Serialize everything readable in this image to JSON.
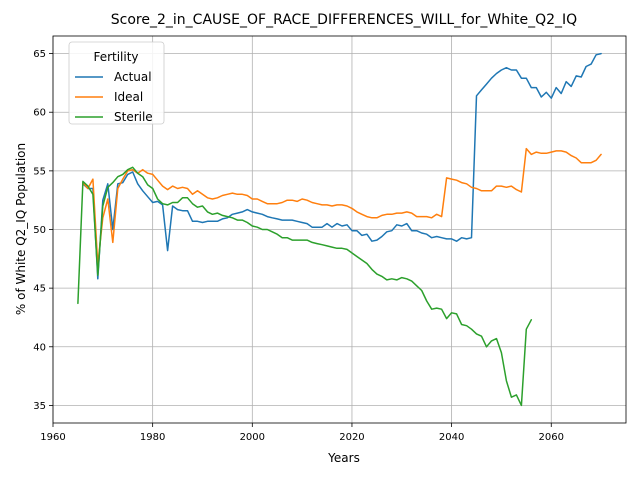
{
  "chart_data": {
    "type": "line",
    "title": "Score_2_in_CAUSE_OF_RACE_DIFFERENCES_WILL_for_White_Q2_IQ",
    "xlabel": "Years",
    "ylabel": "% of White Q2_IQ Population",
    "xlim": [
      1960,
      2075
    ],
    "ylim": [
      33.5,
      66.5
    ],
    "xticks": [
      1960,
      1980,
      2000,
      2020,
      2040,
      2060
    ],
    "yticks": [
      35,
      40,
      45,
      50,
      55,
      60,
      65
    ],
    "grid": true,
    "legend": {
      "title": "Fertility",
      "placement": "upper-left"
    },
    "series": [
      {
        "name": "Actual",
        "color": "#1f77b4",
        "x": [
          1966,
          1967,
          1968,
          1969,
          1970,
          1971,
          1972,
          1973,
          1974,
          1975,
          1976,
          1977,
          1978,
          1979,
          1980,
          1981,
          1982,
          1983,
          1984,
          1985,
          1986,
          1987,
          1988,
          1989,
          1990,
          1991,
          1992,
          1993,
          1994,
          1995,
          1996,
          1997,
          1998,
          1999,
          2000,
          2001,
          2002,
          2003,
          2004,
          2005,
          2006,
          2007,
          2008,
          2009,
          2010,
          2011,
          2012,
          2013,
          2014,
          2015,
          2016,
          2017,
          2018,
          2019,
          2020,
          2021,
          2022,
          2023,
          2024,
          2025,
          2026,
          2027,
          2028,
          2029,
          2030,
          2031,
          2032,
          2033,
          2034,
          2035,
          2036,
          2037,
          2038,
          2039,
          2040,
          2041,
          2042,
          2043,
          2044,
          2045,
          2046,
          2047,
          2048,
          2049,
          2050,
          2051,
          2052,
          2053,
          2054,
          2055,
          2056,
          2057,
          2058,
          2059,
          2060,
          2061,
          2062,
          2063,
          2064,
          2065,
          2066,
          2067,
          2068,
          2069,
          2070
        ],
        "values": [
          53.9,
          53.5,
          53.5,
          45.8,
          52.5,
          53.9,
          50.0,
          53.9,
          54.0,
          54.7,
          54.9,
          53.9,
          53.3,
          52.8,
          52.3,
          52.4,
          52.1,
          48.2,
          52.0,
          51.7,
          51.6,
          51.6,
          50.7,
          50.7,
          50.6,
          50.7,
          50.7,
          50.7,
          50.9,
          51.0,
          51.3,
          51.4,
          51.5,
          51.7,
          51.5,
          51.4,
          51.3,
          51.1,
          51.0,
          50.9,
          50.8,
          50.8,
          50.8,
          50.7,
          50.6,
          50.5,
          50.2,
          50.2,
          50.2,
          50.5,
          50.2,
          50.5,
          50.3,
          50.4,
          49.9,
          49.9,
          49.5,
          49.6,
          49.0,
          49.1,
          49.4,
          49.8,
          49.9,
          50.4,
          50.3,
          50.5,
          49.9,
          49.9,
          49.7,
          49.6,
          49.3,
          49.4,
          49.3,
          49.2,
          49.2,
          49.0,
          49.3,
          49.2,
          49.3,
          61.4,
          61.9,
          62.4,
          62.9,
          63.3,
          63.6,
          63.8,
          63.6,
          63.6,
          62.9,
          62.9,
          62.1,
          62.1,
          61.3,
          61.7,
          61.2,
          62.1,
          61.6,
          62.6,
          62.2,
          63.1,
          63.0,
          63.9,
          64.1,
          64.9,
          65.0
        ]
      },
      {
        "name": "Ideal",
        "color": "#ff7f0e",
        "x": [
          1966,
          1967,
          1968,
          1969,
          1970,
          1971,
          1972,
          1973,
          1974,
          1975,
          1976,
          1977,
          1978,
          1979,
          1980,
          1981,
          1982,
          1983,
          1984,
          1985,
          1986,
          1987,
          1988,
          1989,
          1990,
          1991,
          1992,
          1993,
          1994,
          1995,
          1996,
          1997,
          1998,
          1999,
          2000,
          2001,
          2002,
          2003,
          2004,
          2005,
          2006,
          2007,
          2008,
          2009,
          2010,
          2011,
          2012,
          2013,
          2014,
          2015,
          2016,
          2017,
          2018,
          2019,
          2020,
          2021,
          2022,
          2023,
          2024,
          2025,
          2026,
          2027,
          2028,
          2029,
          2030,
          2031,
          2032,
          2033,
          2034,
          2035,
          2036,
          2037,
          2038,
          2039,
          2040,
          2041,
          2042,
          2043,
          2044,
          2045,
          2046,
          2047,
          2048,
          2049,
          2050,
          2051,
          2052,
          2053,
          2054,
          2055,
          2056,
          2057,
          2058,
          2059,
          2060,
          2061,
          2062,
          2063,
          2064,
          2065,
          2066,
          2067,
          2068,
          2069,
          2070
        ],
        "values": [
          54.0,
          53.5,
          54.3,
          47.0,
          51.0,
          52.6,
          48.9,
          53.5,
          54.3,
          55.0,
          55.1,
          54.8,
          55.1,
          54.8,
          54.7,
          54.2,
          53.7,
          53.4,
          53.7,
          53.5,
          53.6,
          53.5,
          53.0,
          53.3,
          53.0,
          52.7,
          52.6,
          52.7,
          52.9,
          53.0,
          53.1,
          53.0,
          53.0,
          52.9,
          52.6,
          52.6,
          52.4,
          52.2,
          52.2,
          52.2,
          52.3,
          52.5,
          52.5,
          52.4,
          52.6,
          52.5,
          52.3,
          52.2,
          52.1,
          52.1,
          52.0,
          52.1,
          52.1,
          52.0,
          51.8,
          51.5,
          51.3,
          51.1,
          51.0,
          51.0,
          51.2,
          51.3,
          51.3,
          51.4,
          51.4,
          51.5,
          51.4,
          51.1,
          51.1,
          51.1,
          51.0,
          51.3,
          51.1,
          54.4,
          54.3,
          54.2,
          54.0,
          53.9,
          53.6,
          53.5,
          53.3,
          53.3,
          53.3,
          53.7,
          53.7,
          53.6,
          53.7,
          53.4,
          53.2,
          56.9,
          56.4,
          56.6,
          56.5,
          56.5,
          56.6,
          56.7,
          56.7,
          56.6,
          56.3,
          56.1,
          55.7,
          55.7,
          55.7,
          55.9,
          56.4
        ]
      },
      {
        "name": "Sterile",
        "color": "#2ca02c",
        "x": [
          1965,
          1966,
          1967,
          1968,
          1969,
          1970,
          1971,
          1972,
          1973,
          1974,
          1975,
          1976,
          1977,
          1978,
          1979,
          1980,
          1981,
          1982,
          1983,
          1984,
          1985,
          1986,
          1987,
          1988,
          1989,
          1990,
          1991,
          1992,
          1993,
          1994,
          1995,
          1996,
          1997,
          1998,
          1999,
          2000,
          2001,
          2002,
          2003,
          2004,
          2005,
          2006,
          2007,
          2008,
          2009,
          2010,
          2011,
          2012,
          2013,
          2014,
          2015,
          2016,
          2017,
          2018,
          2019,
          2020,
          2021,
          2022,
          2023,
          2024,
          2025,
          2026,
          2027,
          2028,
          2029,
          2030,
          2031,
          2032,
          2033,
          2034,
          2035,
          2036,
          2037,
          2038,
          2039,
          2040,
          2041,
          2042,
          2043,
          2044,
          2045,
          2046,
          2047,
          2048,
          2049,
          2050,
          2051,
          2052,
          2053,
          2054,
          2055,
          2056
        ],
        "values": [
          43.7,
          54.1,
          53.7,
          53.0,
          46.1,
          52.0,
          53.6,
          54.0,
          54.5,
          54.7,
          55.1,
          55.3,
          54.8,
          54.5,
          53.8,
          53.5,
          52.6,
          52.2,
          52.1,
          52.3,
          52.3,
          52.7,
          52.7,
          52.2,
          51.9,
          52.0,
          51.5,
          51.3,
          51.4,
          51.2,
          51.1,
          51.0,
          50.8,
          50.8,
          50.6,
          50.3,
          50.2,
          50.0,
          50.0,
          49.8,
          49.6,
          49.3,
          49.3,
          49.1,
          49.1,
          49.1,
          49.1,
          48.9,
          48.8,
          48.7,
          48.6,
          48.5,
          48.4,
          48.4,
          48.3,
          48.0,
          47.7,
          47.4,
          47.1,
          46.6,
          46.2,
          46.0,
          45.7,
          45.8,
          45.7,
          45.9,
          45.8,
          45.6,
          45.2,
          44.8,
          43.9,
          43.2,
          43.3,
          43.2,
          42.4,
          42.9,
          42.8,
          41.9,
          41.8,
          41.5,
          41.1,
          40.9,
          40.0,
          40.5,
          40.7,
          39.5,
          37.1,
          35.7,
          35.9,
          35.0,
          41.5,
          42.3
        ]
      }
    ]
  }
}
